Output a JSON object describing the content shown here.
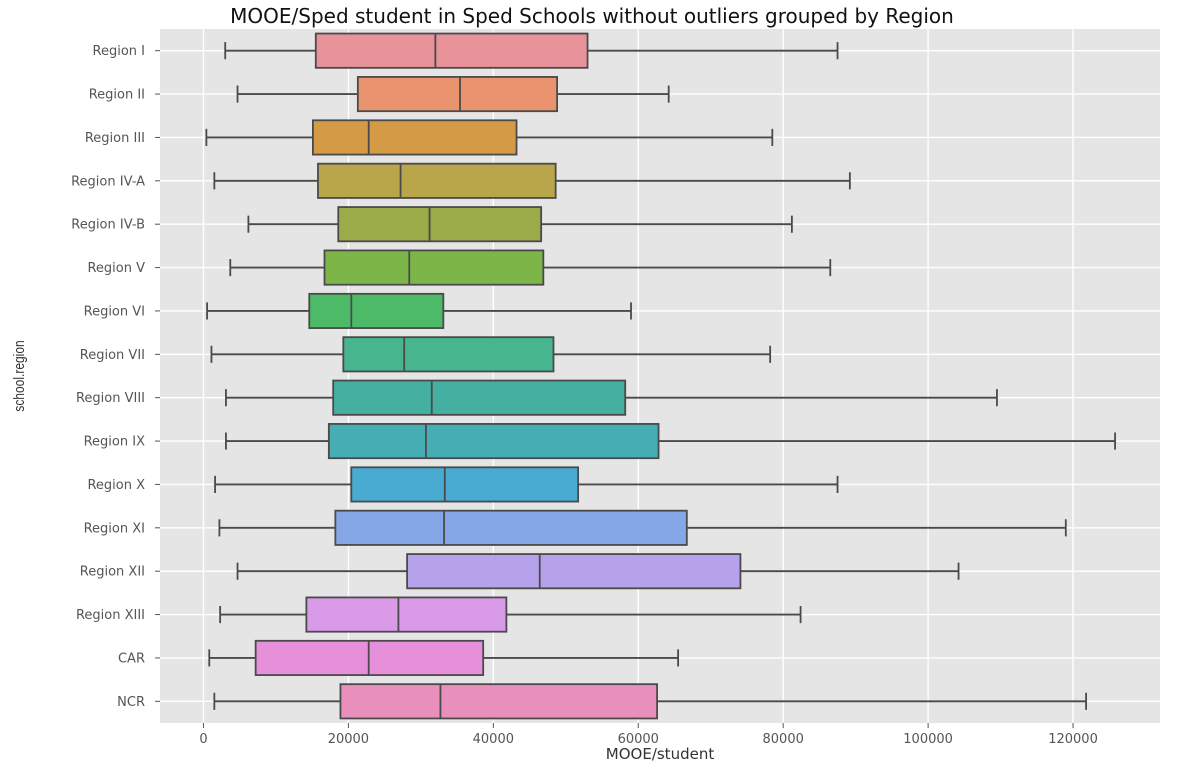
{
  "chart_data": {
    "type": "box",
    "orientation": "horizontal",
    "title": "MOOE/Sped student in Sped Schools without outliers grouped by Region",
    "xlabel": "MOOE/student",
    "ylabel": "school.region",
    "xlim": [
      -6000,
      132000
    ],
    "xticks": [
      0,
      20000,
      40000,
      60000,
      80000,
      100000,
      120000
    ],
    "xtick_labels": [
      "0",
      "20000",
      "40000",
      "60000",
      "80000",
      "100000",
      "120000"
    ],
    "grid": true,
    "background": "#e5e5e5",
    "grid_color": "#ffffff",
    "categories": [
      "Region I",
      "Region II",
      "Region III",
      "Region IV-A",
      "Region IV-B",
      "Region V",
      "Region VI",
      "Region VII",
      "Region VIII",
      "Region IX",
      "Region X",
      "Region XI",
      "Region XII",
      "Region XIII",
      "CAR",
      "NCR"
    ],
    "boxes": [
      {
        "category": "Region I",
        "whislo": 3000,
        "q1": 15500,
        "med": 32000,
        "q3": 53000,
        "whishi": 87500,
        "color": "#e8929a"
      },
      {
        "category": "Region II",
        "whislo": 4700,
        "q1": 21300,
        "med": 35400,
        "q3": 48800,
        "whishi": 64200,
        "color": "#e9936f"
      },
      {
        "category": "Region III",
        "whislo": 400,
        "q1": 15100,
        "med": 22800,
        "q3": 43200,
        "whishi": 78500,
        "color": "#d49a45"
      },
      {
        "category": "Region IV-A",
        "whislo": 1500,
        "q1": 15800,
        "med": 27200,
        "q3": 48600,
        "whishi": 89200,
        "color": "#b9a64a"
      },
      {
        "category": "Region IV-B",
        "whislo": 6200,
        "q1": 18600,
        "med": 31200,
        "q3": 46600,
        "whishi": 81200,
        "color": "#9bab48"
      },
      {
        "category": "Region V",
        "whislo": 3700,
        "q1": 16700,
        "med": 28400,
        "q3": 46900,
        "whishi": 86500,
        "color": "#7cb548"
      },
      {
        "category": "Region VI",
        "whislo": 500,
        "q1": 14600,
        "med": 20400,
        "q3": 33100,
        "whishi": 59000,
        "color": "#4dba67"
      },
      {
        "category": "Region VII",
        "whislo": 1100,
        "q1": 19300,
        "med": 27700,
        "q3": 48300,
        "whishi": 78200,
        "color": "#47b68e"
      },
      {
        "category": "Region VIII",
        "whislo": 3100,
        "q1": 17900,
        "med": 31500,
        "q3": 58200,
        "whishi": 109500,
        "color": "#45b0a2"
      },
      {
        "category": "Region IX",
        "whislo": 3100,
        "q1": 17300,
        "med": 30700,
        "q3": 62800,
        "whishi": 125800,
        "color": "#46adb5"
      },
      {
        "category": "Region X",
        "whislo": 1600,
        "q1": 20400,
        "med": 33300,
        "q3": 51700,
        "whishi": 87500,
        "color": "#49abd2"
      },
      {
        "category": "Region XI",
        "whislo": 2200,
        "q1": 18200,
        "med": 33200,
        "q3": 66700,
        "whishi": 119000,
        "color": "#86a7e6"
      },
      {
        "category": "Region XII",
        "whislo": 4700,
        "q1": 28100,
        "med": 46400,
        "q3": 74100,
        "whishi": 104200,
        "color": "#b5a2ea"
      },
      {
        "category": "Region XIII",
        "whislo": 2300,
        "q1": 14200,
        "med": 26900,
        "q3": 41800,
        "whishi": 82400,
        "color": "#d99be7"
      },
      {
        "category": "CAR",
        "whislo": 800,
        "q1": 7200,
        "med": 22800,
        "q3": 38600,
        "whishi": 65500,
        "color": "#e68fda"
      },
      {
        "category": "NCR",
        "whislo": 1500,
        "q1": 18900,
        "med": 32700,
        "q3": 62600,
        "whishi": 121800,
        "color": "#e98fbc"
      }
    ]
  }
}
